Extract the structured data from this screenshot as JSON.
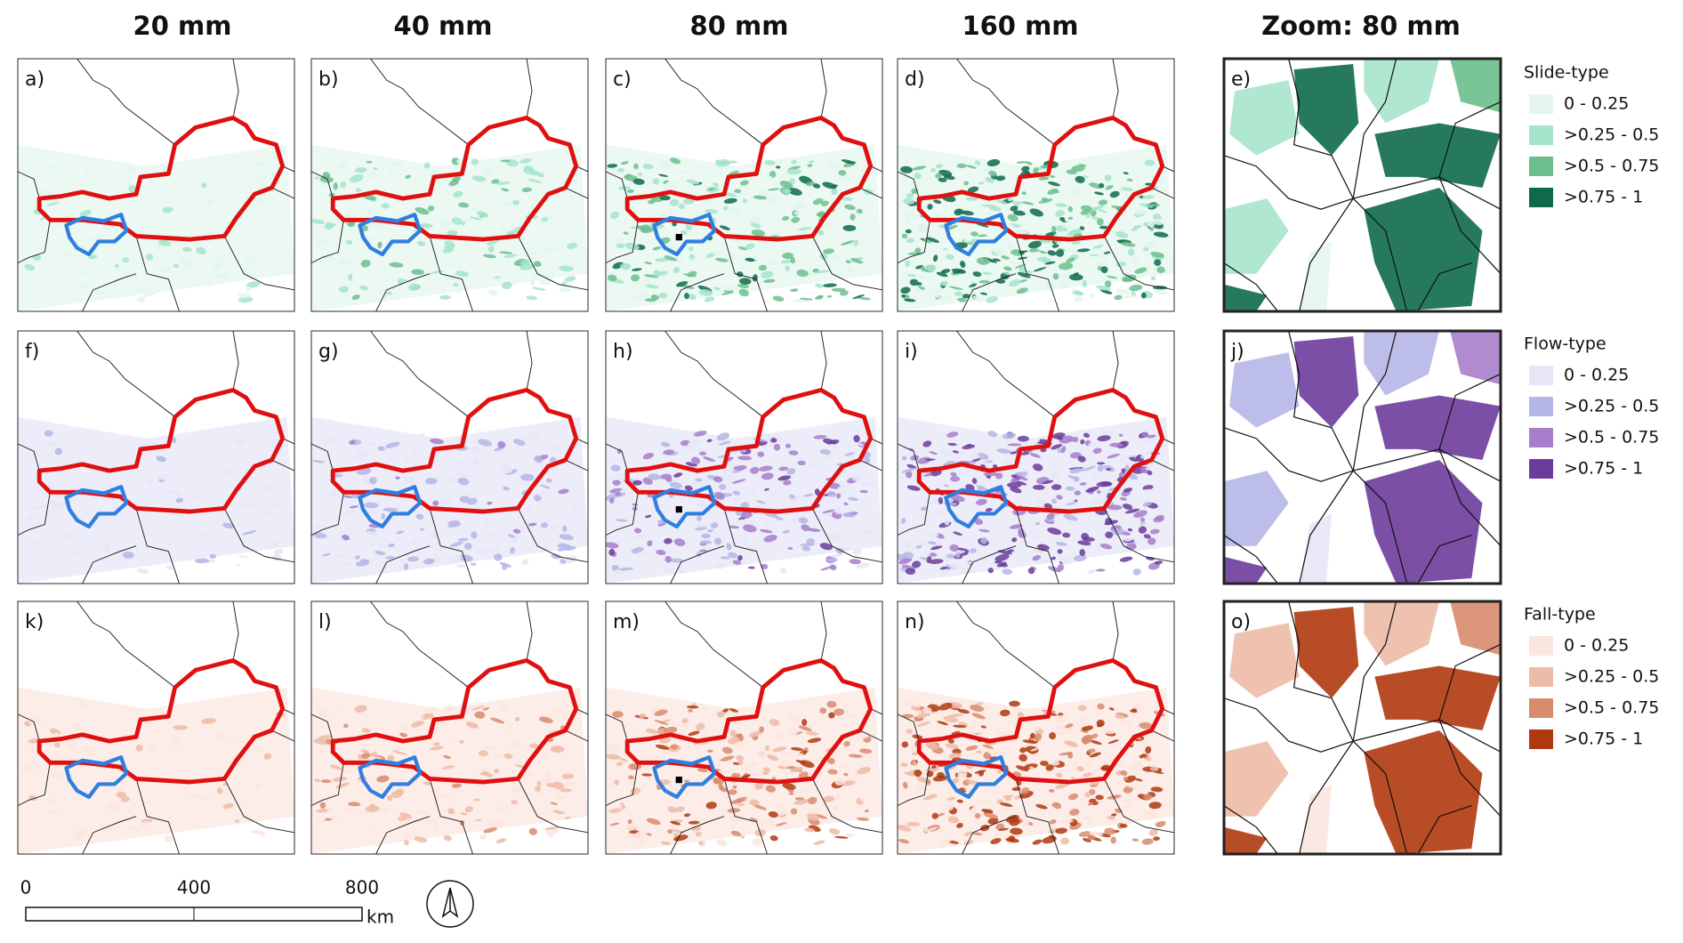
{
  "columns": [
    "20 mm",
    "40 mm",
    "80 mm",
    "160 mm",
    "Zoom: 80 mm"
  ],
  "rows": [
    {
      "panels": [
        "a)",
        "b)",
        "c)",
        "d)",
        "e)"
      ],
      "legend": {
        "title": "Slide-type",
        "items": [
          {
            "label": "0 - 0.25",
            "color": "#e4f6ee"
          },
          {
            "label": ">0.25 - 0.5",
            "color": "#a6e4cb"
          },
          {
            "label": ">0.5 - 0.75",
            "color": "#6cbf8c"
          },
          {
            "label": ">0.75 - 1",
            "color": "#0e6a4a"
          }
        ]
      }
    },
    {
      "panels": [
        "f)",
        "g)",
        "h)",
        "i)",
        "j)"
      ],
      "legend": {
        "title": "Flow-type",
        "items": [
          {
            "label": "0 - 0.25",
            "color": "#e6e6f6"
          },
          {
            "label": ">0.25 - 0.5",
            "color": "#b5b6e5"
          },
          {
            "label": ">0.5 - 0.75",
            "color": "#a77ecb"
          },
          {
            "label": ">0.75 - 1",
            "color": "#6b3c9b"
          }
        ]
      }
    },
    {
      "panels": [
        "k)",
        "l)",
        "m)",
        "n)",
        "o)"
      ],
      "legend": {
        "title": "Fall-type",
        "items": [
          {
            "label": "0 - 0.25",
            "color": "#fbe5df"
          },
          {
            "label": ">0.25 - 0.5",
            "color": "#edbba6"
          },
          {
            "label": ">0.5 - 0.75",
            "color": "#d88b6d"
          },
          {
            "label": ">0.75 - 1",
            "color": "#b0380e"
          }
        ]
      }
    }
  ],
  "scale_bar": {
    "ticks": [
      0,
      400,
      800
    ],
    "unit": "km"
  }
}
